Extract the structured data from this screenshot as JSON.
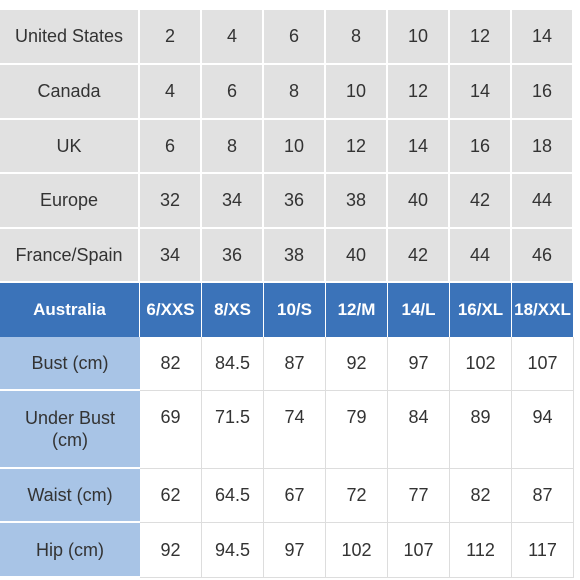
{
  "table": {
    "conversions": [
      {
        "label": "United States",
        "cells": [
          "2",
          "4",
          "6",
          "8",
          "10",
          "12",
          "14"
        ]
      },
      {
        "label": "Canada",
        "cells": [
          "4",
          "6",
          "8",
          "10",
          "12",
          "14",
          "16"
        ]
      },
      {
        "label": "UK",
        "cells": [
          "6",
          "8",
          "10",
          "12",
          "14",
          "16",
          "18"
        ]
      },
      {
        "label": "Europe",
        "cells": [
          "32",
          "34",
          "36",
          "38",
          "40",
          "42",
          "44"
        ]
      },
      {
        "label": "France/Spain",
        "cells": [
          "34",
          "36",
          "38",
          "40",
          "42",
          "44",
          "46"
        ]
      }
    ],
    "header": {
      "label": "Australia",
      "cells": [
        "6/XXS",
        "8/XS",
        "10/S",
        "12/M",
        "14/L",
        "16/XL",
        "18/XXL"
      ]
    },
    "measurements": [
      {
        "label": "Bust (cm)",
        "cells": [
          "82",
          "84.5",
          "87",
          "92",
          "97",
          "102",
          "107"
        ]
      },
      {
        "label": "Under Bust (cm)",
        "cells": [
          "69",
          "71.5",
          "74",
          "79",
          "84",
          "89",
          "94"
        ]
      },
      {
        "label": "Waist (cm)",
        "cells": [
          "62",
          "64.5",
          "67",
          "72",
          "77",
          "82",
          "87"
        ]
      },
      {
        "label": "Hip (cm)",
        "cells": [
          "92",
          "94.5",
          "97",
          "102",
          "107",
          "112",
          "117"
        ]
      }
    ]
  }
}
